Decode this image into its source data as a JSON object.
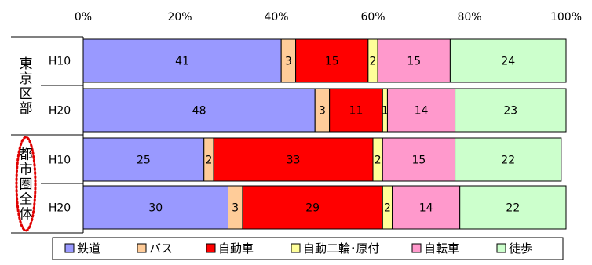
{
  "chart_data": {
    "type": "bar",
    "orientation": "horizontal",
    "stacked": true,
    "normalized_percent": true,
    "x_ticks": [
      "0%",
      "20%",
      "40%",
      "60%",
      "80%",
      "100%"
    ],
    "xlim": [
      0,
      100
    ],
    "grid": false,
    "legend_position": "bottom",
    "groups": [
      {
        "label": "東京区部",
        "highlighted": false,
        "rows": [
          {
            "label": "H10",
            "values": [
              41,
              3,
              15,
              2,
              15,
              24
            ]
          },
          {
            "label": "H20",
            "values": [
              48,
              3,
              11,
              1,
              14,
              23
            ]
          }
        ]
      },
      {
        "label": "都市圏全体",
        "highlighted": true,
        "rows": [
          {
            "label": "H10",
            "values": [
              25,
              2,
              33,
              2,
              15,
              22
            ]
          },
          {
            "label": "H20",
            "values": [
              30,
              3,
              29,
              2,
              14,
              22
            ]
          }
        ]
      }
    ],
    "series": [
      {
        "name": "鉄道",
        "color": "#9999ff"
      },
      {
        "name": "バス",
        "color": "#ffcc99"
      },
      {
        "name": "自動車",
        "color": "#ff0000"
      },
      {
        "name": "自動二輪･原付",
        "color": "#ffff99"
      },
      {
        "name": "自転車",
        "color": "#ff99cc"
      },
      {
        "name": "徒歩",
        "color": "#ccffcc"
      }
    ],
    "highlight_color": "#e00000"
  }
}
